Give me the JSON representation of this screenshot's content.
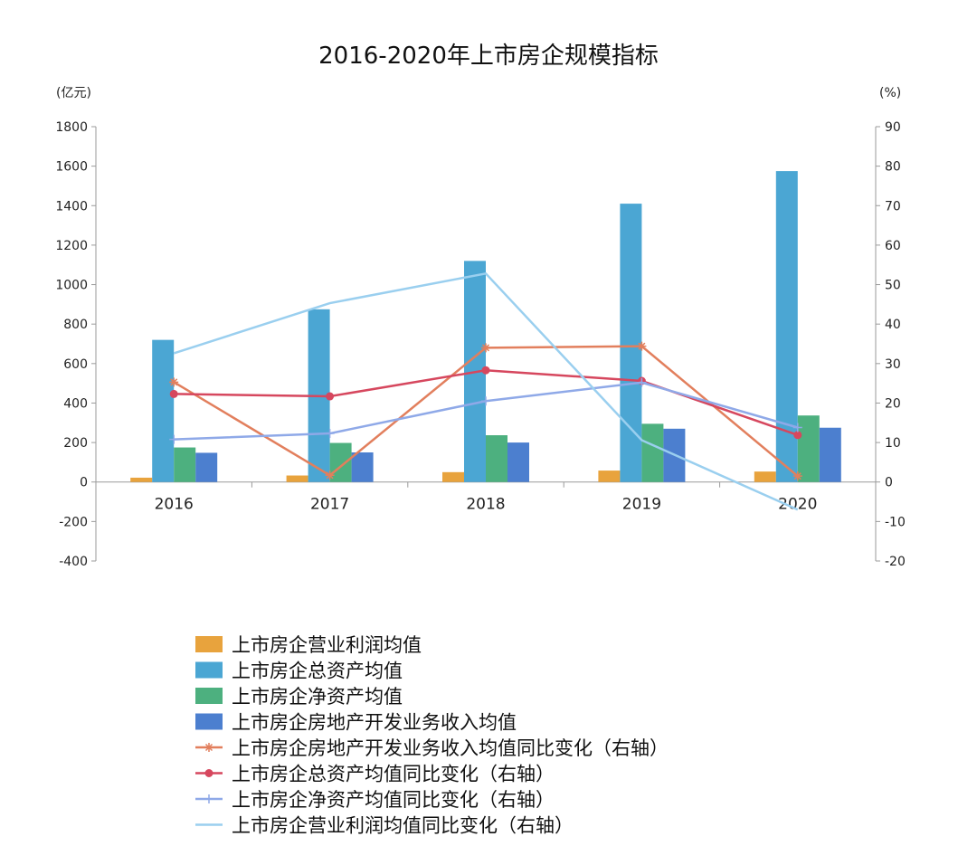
{
  "chart_data": {
    "type": "bar",
    "title": "2016-2020年上市房企规模指标",
    "left_axis_unit": "(亿元)",
    "right_axis_unit": "(%)",
    "categories": [
      "2016",
      "2017",
      "2018",
      "2019",
      "2020"
    ],
    "ylim_left": [
      -400,
      1800
    ],
    "yticks_left": [
      -400,
      -200,
      0,
      200,
      400,
      600,
      800,
      1000,
      1200,
      1400,
      1600,
      1800
    ],
    "ylim_right": [
      -20,
      90
    ],
    "yticks_right": [
      -20,
      -10,
      0,
      10,
      20,
      30,
      40,
      50,
      60,
      70,
      80,
      90
    ],
    "grid": false,
    "legend_position": "bottom",
    "bar_series": [
      {
        "name": "上市房企营业利润均值",
        "color": "#E8A33D",
        "values": [
          22,
          33,
          50,
          58,
          53
        ]
      },
      {
        "name": "上市房企总资产均值",
        "color": "#4BA6D3",
        "values": [
          720,
          875,
          1120,
          1410,
          1575
        ]
      },
      {
        "name": "上市房企净资产均值",
        "color": "#4DB07F",
        "values": [
          175,
          198,
          237,
          295,
          337
        ]
      },
      {
        "name": "上市房企房地产开发业务收入均值",
        "color": "#4C7FCF",
        "values": [
          148,
          150,
          200,
          270,
          275
        ]
      }
    ],
    "line_series": [
      {
        "name": "上市房企房地产开发业务收入均值同比变化（右轴）",
        "color": "#E27F5D",
        "marker": "star",
        "values": [
          25.3,
          1.7,
          34.0,
          34.4,
          1.5
        ]
      },
      {
        "name": "上市房企总资产均值同比变化（右轴）",
        "color": "#D6475E",
        "marker": "circle",
        "values": [
          22.3,
          21.7,
          28.3,
          25.6,
          11.9
        ]
      },
      {
        "name": "上市房企净资产均值同比变化（右轴）",
        "color": "#8FA9E8",
        "marker": "plus",
        "values": [
          10.8,
          12.3,
          20.5,
          25.2,
          13.8
        ]
      },
      {
        "name": "上市房企营业利润均值同比变化（右轴）",
        "color": "#9ACFEF",
        "marker": "none",
        "values": [
          32.6,
          45.3,
          52.8,
          10.6,
          -7.0
        ]
      }
    ]
  }
}
